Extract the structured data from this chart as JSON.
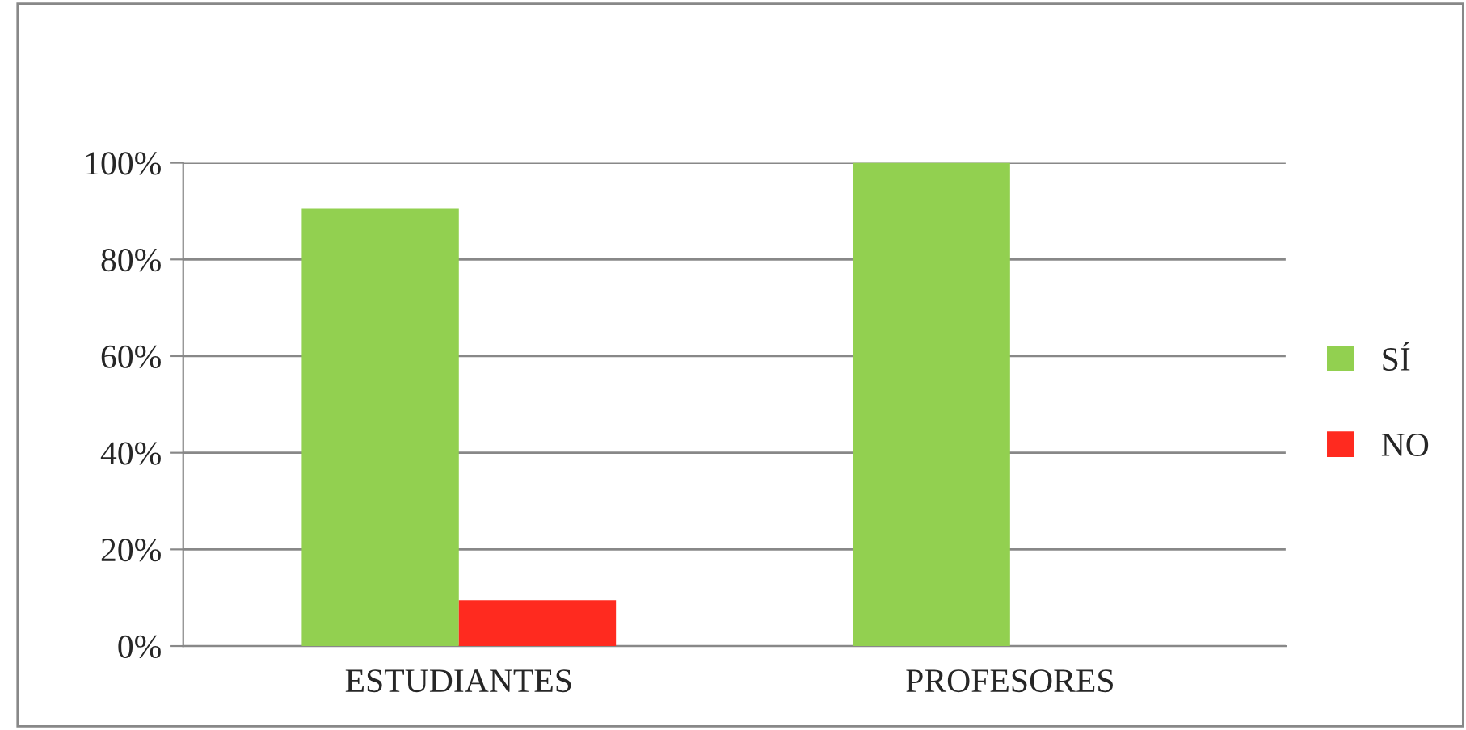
{
  "chart_data": {
    "type": "bar",
    "categories": [
      "ESTUDIANTES",
      "PROFESORES"
    ],
    "series": [
      {
        "name": "SÍ",
        "color": "#92d050",
        "values": [
          90.5,
          100
        ]
      },
      {
        "name": "NO",
        "color": "#ff2a1f",
        "values": [
          9.5,
          null
        ]
      }
    ],
    "ylim": [
      0,
      100
    ],
    "yticks": [
      {
        "value": 0,
        "label": "0%"
      },
      {
        "value": 20,
        "label": "20%"
      },
      {
        "value": 40,
        "label": "40%"
      },
      {
        "value": 60,
        "label": "60%"
      },
      {
        "value": 80,
        "label": "80%"
      },
      {
        "value": 100,
        "label": "100%"
      }
    ],
    "grid": "y",
    "legend": "right"
  }
}
